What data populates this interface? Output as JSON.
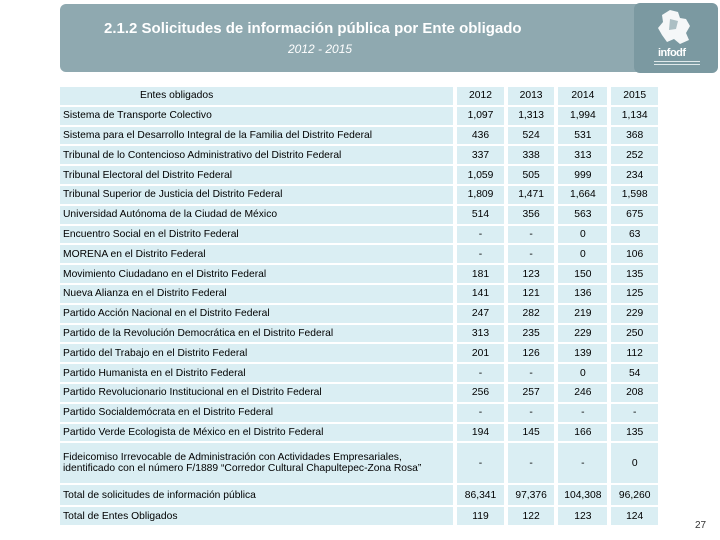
{
  "header": {
    "title": "2.1.2 Solicitudes de información pública por Ente obligado",
    "subtitle": "2012 - 2015",
    "logo_text": "infodf"
  },
  "table": {
    "name_header": "Entes obligados",
    "years": [
      "2012",
      "2013",
      "2014",
      "2015"
    ],
    "rows": [
      {
        "name": "Sistema de Transporte Colectivo",
        "values": [
          "1,097",
          "1,313",
          "1,994",
          "1,134"
        ]
      },
      {
        "name": "Sistema para el Desarrollo Integral de la Familia del Distrito Federal",
        "values": [
          "436",
          "524",
          "531",
          "368"
        ]
      },
      {
        "name": "Tribunal de lo Contencioso Administrativo del Distrito Federal",
        "values": [
          "337",
          "338",
          "313",
          "252"
        ]
      },
      {
        "name": "Tribunal Electoral del Distrito Federal",
        "values": [
          "1,059",
          "505",
          "999",
          "234"
        ]
      },
      {
        "name": "Tribunal Superior de Justicia del Distrito Federal",
        "values": [
          "1,809",
          "1,471",
          "1,664",
          "1,598"
        ]
      },
      {
        "name": "Universidad Autónoma de la Ciudad de México",
        "values": [
          "514",
          "356",
          "563",
          "675"
        ]
      },
      {
        "name": "Encuentro Social en el Distrito Federal",
        "values": [
          "-",
          "-",
          "0",
          "63"
        ]
      },
      {
        "name": "MORENA en el Distrito Federal",
        "values": [
          "-",
          "-",
          "0",
          "106"
        ]
      },
      {
        "name": "Movimiento Ciudadano en el Distrito Federal",
        "values": [
          "181",
          "123",
          "150",
          "135"
        ]
      },
      {
        "name": "Nueva Alianza en el Distrito Federal",
        "values": [
          "141",
          "121",
          "136",
          "125"
        ]
      },
      {
        "name": "Partido Acción Nacional en el Distrito Federal",
        "values": [
          "247",
          "282",
          "219",
          "229"
        ]
      },
      {
        "name": "Partido de la Revolución Democrática en el Distrito Federal",
        "values": [
          "313",
          "235",
          "229",
          "250"
        ]
      },
      {
        "name": "Partido del Trabajo en el Distrito Federal",
        "values": [
          "201",
          "126",
          "139",
          "112"
        ]
      },
      {
        "name": "Partido Humanista en el Distrito Federal",
        "values": [
          "-",
          "-",
          "0",
          "54"
        ]
      },
      {
        "name": "Partido Revolucionario Institucional en el Distrito Federal",
        "values": [
          "256",
          "257",
          "246",
          "208"
        ]
      },
      {
        "name": "Partido Socialdemócrata en el Distrito Federal",
        "values": [
          "-",
          "-",
          "-",
          "-"
        ]
      },
      {
        "name": "Partido Verde Ecologista de México en el Distrito Federal",
        "values": [
          "194",
          "145",
          "166",
          "135"
        ]
      },
      {
        "name": "Fideicomiso Irrevocable de Administración con Actividades Empresariales, identificado con el número F/1889 “Corredor Cultural Chapultepec-Zona Rosa”",
        "values": [
          "-",
          "-",
          "-",
          "0"
        ]
      }
    ],
    "total_solicitudes": {
      "name": "Total de solicitudes de información pública",
      "values": [
        "86,341",
        "97,376",
        "104,308",
        "96,260"
      ]
    },
    "total_entes": {
      "name": "Total de Entes Obligados",
      "values": [
        "119",
        "122",
        "123",
        "124"
      ]
    }
  },
  "page_number": "27",
  "colors": {
    "banner": "#8fa9b0",
    "logo_bg": "#7b99a1",
    "cell_bg": "#daeef3"
  }
}
